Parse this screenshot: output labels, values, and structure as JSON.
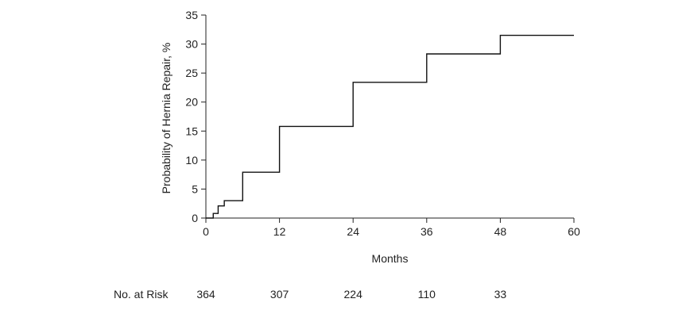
{
  "chart_data": {
    "type": "line",
    "chart_title": "",
    "xlabel": "Months",
    "ylabel": "Probability of Hernia Repair, %",
    "xlim": [
      0,
      60
    ],
    "ylim": [
      0,
      35
    ],
    "x_ticks": [
      0,
      12,
      24,
      36,
      48,
      60
    ],
    "y_ticks": [
      0,
      5,
      10,
      15,
      20,
      25,
      30,
      35
    ],
    "grid": false,
    "legend": "none",
    "line_color": "#111111",
    "step": true,
    "series": [
      {
        "points": [
          [
            0,
            0
          ],
          [
            1.2,
            0.8
          ],
          [
            2,
            2.1
          ],
          [
            3,
            3.0
          ],
          [
            6,
            7.9
          ],
          [
            12,
            15.8
          ],
          [
            24,
            23.4
          ],
          [
            36,
            28.3
          ],
          [
            48,
            31.5
          ],
          [
            60,
            31.5
          ]
        ]
      }
    ],
    "risk_table": {
      "label": "No. at Risk",
      "times": [
        0,
        12,
        24,
        36,
        48
      ],
      "values": [
        "364",
        "307",
        "224",
        "110",
        "33"
      ]
    }
  }
}
